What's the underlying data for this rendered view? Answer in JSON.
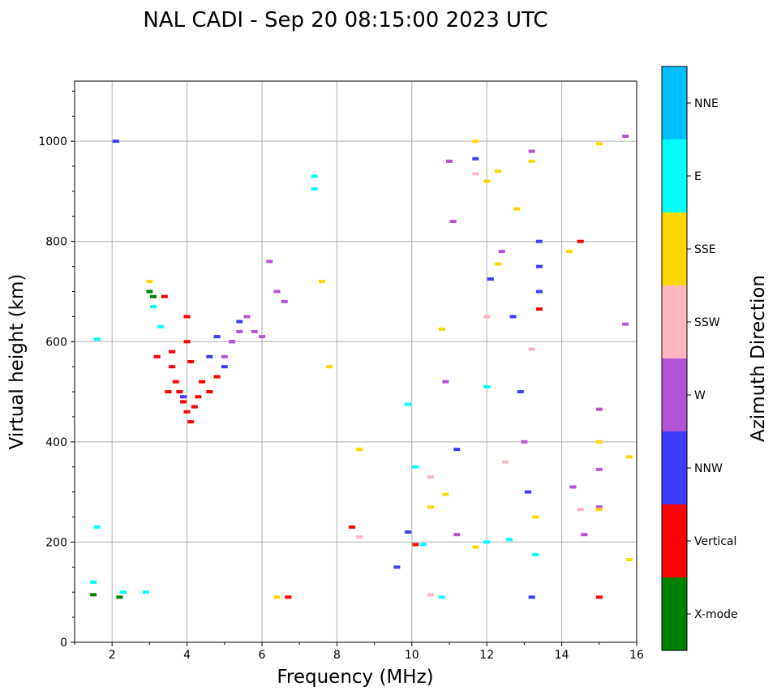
{
  "chart_data": {
    "type": "scatter",
    "title": "NAL CADI - Sep 20 08:15:00 2023 UTC",
    "xlabel": "Frequency (MHz)",
    "ylabel": "Virtual height (km)",
    "xlim": [
      1,
      16
    ],
    "ylim": [
      0,
      1120
    ],
    "xticks": [
      2,
      4,
      6,
      8,
      10,
      12,
      14,
      16
    ],
    "yticks": [
      0,
      200,
      400,
      600,
      800,
      1000
    ],
    "grid": true,
    "colorbar": {
      "label": "Azimuth Direction",
      "categories": [
        "X-mode",
        "Vertical",
        "NNW",
        "W",
        "SSW",
        "SSE",
        "E",
        "NNE"
      ],
      "colors": [
        "#008000",
        "#ff0000",
        "#3c3cff",
        "#b455d8",
        "#ffb6c1",
        "#ffd700",
        "#00ffff",
        "#00bfff"
      ]
    },
    "series": [
      {
        "name": "X-mode",
        "points": [
          [
            1.5,
            95
          ],
          [
            3.0,
            700
          ],
          [
            3.1,
            690
          ],
          [
            2.2,
            90
          ]
        ]
      },
      {
        "name": "Vertical",
        "points": [
          [
            3.6,
            550
          ],
          [
            3.7,
            520
          ],
          [
            3.8,
            500
          ],
          [
            3.9,
            480
          ],
          [
            4.0,
            460
          ],
          [
            4.1,
            440
          ],
          [
            4.2,
            470
          ],
          [
            4.3,
            490
          ],
          [
            4.0,
            600
          ],
          [
            4.0,
            650
          ],
          [
            4.1,
            560
          ],
          [
            4.4,
            520
          ],
          [
            4.6,
            500
          ],
          [
            4.8,
            530
          ],
          [
            3.5,
            500
          ],
          [
            3.6,
            580
          ],
          [
            3.2,
            570
          ],
          [
            3.4,
            690
          ],
          [
            8.4,
            230
          ],
          [
            10.1,
            195
          ],
          [
            13.4,
            665
          ],
          [
            14.5,
            800
          ],
          [
            15.0,
            90
          ],
          [
            6.7,
            90
          ]
        ]
      },
      {
        "name": "NNW",
        "points": [
          [
            13.4,
            700
          ],
          [
            13.4,
            750
          ],
          [
            13.4,
            800
          ],
          [
            5.0,
            550
          ],
          [
            5.2,
            600
          ],
          [
            5.4,
            640
          ],
          [
            4.6,
            570
          ],
          [
            4.8,
            610
          ],
          [
            3.9,
            490
          ],
          [
            11.2,
            385
          ],
          [
            12.7,
            650
          ],
          [
            12.9,
            500
          ],
          [
            13.1,
            300
          ],
          [
            13.2,
            90
          ],
          [
            9.9,
            220
          ],
          [
            9.6,
            150
          ],
          [
            2.1,
            1000
          ],
          [
            11.7,
            965
          ],
          [
            12.1,
            725
          ]
        ]
      },
      {
        "name": "W",
        "points": [
          [
            5.0,
            570
          ],
          [
            5.2,
            600
          ],
          [
            5.4,
            620
          ],
          [
            5.6,
            650
          ],
          [
            5.8,
            620
          ],
          [
            6.0,
            610
          ],
          [
            6.4,
            700
          ],
          [
            6.6,
            680
          ],
          [
            6.2,
            760
          ],
          [
            12.4,
            780
          ],
          [
            13.2,
            980
          ],
          [
            13.0,
            400
          ],
          [
            14.6,
            215
          ],
          [
            14.3,
            310
          ],
          [
            15.0,
            270
          ],
          [
            15.0,
            345
          ],
          [
            15.0,
            465
          ],
          [
            15.7,
            1010
          ],
          [
            15.7,
            635
          ],
          [
            11.2,
            215
          ],
          [
            11.0,
            960
          ],
          [
            11.1,
            840
          ],
          [
            10.9,
            520
          ]
        ]
      },
      {
        "name": "SSW",
        "points": [
          [
            12.5,
            360
          ],
          [
            13.2,
            585
          ],
          [
            14.5,
            265
          ],
          [
            10.3,
            195
          ],
          [
            10.5,
            95
          ],
          [
            10.5,
            330
          ],
          [
            11.7,
            935
          ],
          [
            8.6,
            210
          ],
          [
            12.0,
            650
          ]
        ]
      },
      {
        "name": "SSE",
        "points": [
          [
            3.0,
            720
          ],
          [
            6.4,
            90
          ],
          [
            8.6,
            385
          ],
          [
            10.8,
            625
          ],
          [
            12.3,
            755
          ],
          [
            12.3,
            940
          ],
          [
            12.8,
            865
          ],
          [
            13.2,
            960
          ],
          [
            13.3,
            250
          ],
          [
            15.0,
            400
          ],
          [
            15.0,
            265
          ],
          [
            15.0,
            995
          ],
          [
            15.8,
            370
          ],
          [
            15.8,
            165
          ],
          [
            7.6,
            720
          ],
          [
            7.8,
            550
          ],
          [
            11.7,
            190
          ],
          [
            11.7,
            1000
          ],
          [
            14.2,
            780
          ],
          [
            10.5,
            270
          ],
          [
            10.9,
            295
          ],
          [
            12.0,
            920
          ]
        ]
      },
      {
        "name": "E",
        "points": [
          [
            1.5,
            120
          ],
          [
            1.6,
            230
          ],
          [
            1.6,
            605
          ],
          [
            3.1,
            670
          ],
          [
            3.3,
            630
          ],
          [
            7.4,
            930
          ],
          [
            7.4,
            905
          ],
          [
            9.9,
            475
          ],
          [
            10.1,
            350
          ],
          [
            10.3,
            195
          ],
          [
            12.0,
            510
          ],
          [
            12.0,
            200
          ],
          [
            12.6,
            205
          ],
          [
            13.3,
            175
          ],
          [
            10.8,
            90
          ],
          [
            2.3,
            100
          ],
          [
            2.9,
            100
          ]
        ]
      },
      {
        "name": "NNE",
        "points": []
      }
    ]
  }
}
